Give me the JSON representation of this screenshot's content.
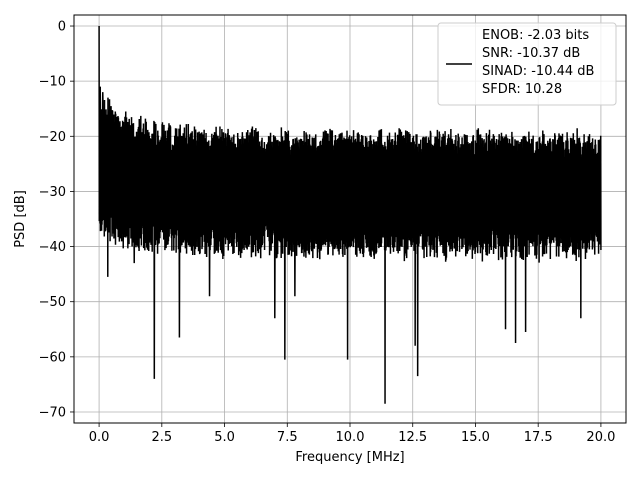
{
  "chart_data": {
    "type": "line",
    "title": "",
    "xlabel": "Frequency [MHz]",
    "ylabel": "PSD [dB]",
    "xlim": [
      -1.0,
      21.0
    ],
    "ylim": [
      -72.0,
      2.0
    ],
    "xticks": [
      0.0,
      2.5,
      5.0,
      7.5,
      10.0,
      12.5,
      15.0,
      17.5,
      20.0
    ],
    "xtick_labels": [
      "0.0",
      "2.5",
      "5.0",
      "7.5",
      "10.0",
      "12.5",
      "15.0",
      "17.5",
      "20.0"
    ],
    "yticks": [
      0,
      -10,
      -20,
      -30,
      -40,
      -50,
      -60,
      -70
    ],
    "ytick_labels": [
      "0",
      "−10",
      "−20",
      "−30",
      "−40",
      "−50",
      "−60",
      "−70"
    ],
    "grid": true,
    "legend_position": "upper-right",
    "series": [
      {
        "color": "#000000",
        "x_range": [
          0.0,
          20.0
        ],
        "noise_floor_mean_db": -30,
        "noise_floor_spread_db": [
          -40,
          -20
        ],
        "peaks": [
          {
            "x": 0.0,
            "y": 0.0
          },
          {
            "x": 0.05,
            "y": -11.0
          },
          {
            "x": 0.15,
            "y": -12.0
          },
          {
            "x": 0.4,
            "y": -16.0
          }
        ],
        "notches": [
          {
            "x": 0.35,
            "y": -45.5
          },
          {
            "x": 1.4,
            "y": -43.0
          },
          {
            "x": 2.2,
            "y": -64.0
          },
          {
            "x": 3.2,
            "y": -56.5
          },
          {
            "x": 4.4,
            "y": -49.0
          },
          {
            "x": 7.0,
            "y": -53.0
          },
          {
            "x": 7.4,
            "y": -60.5
          },
          {
            "x": 7.8,
            "y": -49.0
          },
          {
            "x": 9.9,
            "y": -60.5
          },
          {
            "x": 11.4,
            "y": -68.5
          },
          {
            "x": 12.7,
            "y": -63.5
          },
          {
            "x": 12.6,
            "y": -58.0
          },
          {
            "x": 16.6,
            "y": -57.5
          },
          {
            "x": 16.2,
            "y": -55.0
          },
          {
            "x": 17.0,
            "y": -55.5
          },
          {
            "x": 19.2,
            "y": -53.0
          }
        ]
      }
    ],
    "legend_entries": [
      "ENOB: -2.03 bits",
      "SNR: -10.37 dB",
      "SINAD: -10.44 dB",
      "SFDR: 10.28"
    ]
  }
}
